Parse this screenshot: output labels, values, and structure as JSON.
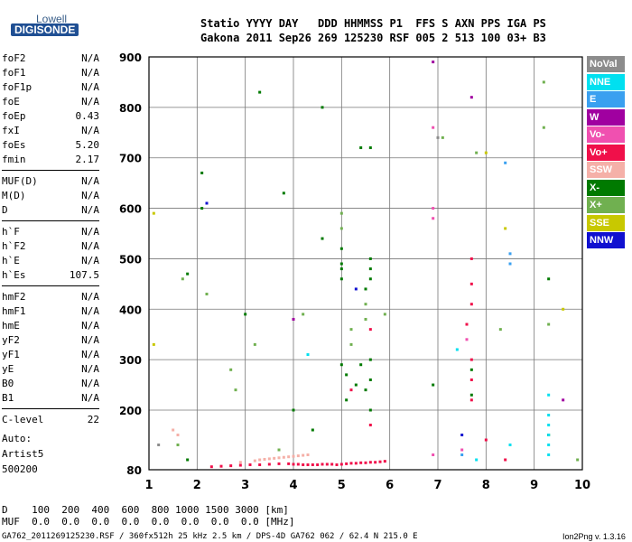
{
  "logo": {
    "top": "Lowell",
    "bottom": "DIGISONDE"
  },
  "header": {
    "line1": "Statio YYYY DAY   DDD HHMMSS P1  FFS S AXN PPS IGA PS",
    "line2": "Gakona 2011 Sep26 269 125230 RSF 005 2 513 100 03+ B3"
  },
  "params_groups": [
    [
      {
        "name": "foF2",
        "value": "N/A"
      },
      {
        "name": "foF1",
        "value": "N/A"
      },
      {
        "name": "foF1p",
        "value": "N/A"
      },
      {
        "name": "foE",
        "value": "N/A"
      },
      {
        "name": "foEp",
        "value": "0.43"
      },
      {
        "name": "fxI",
        "value": "N/A"
      },
      {
        "name": "foEs",
        "value": "5.20"
      },
      {
        "name": "fmin",
        "value": "2.17"
      }
    ],
    [
      {
        "name": "MUF(D)",
        "value": "N/A"
      },
      {
        "name": "M(D)",
        "value": "N/A"
      },
      {
        "name": "D",
        "value": "N/A"
      }
    ],
    [
      {
        "name": "h`F",
        "value": "N/A"
      },
      {
        "name": "h`F2",
        "value": "N/A"
      },
      {
        "name": "h`E",
        "value": "N/A"
      },
      {
        "name": "h`Es",
        "value": "107.5"
      }
    ],
    [
      {
        "name": "hmF2",
        "value": "N/A"
      },
      {
        "name": "hmF1",
        "value": "N/A"
      },
      {
        "name": "hmE",
        "value": "N/A"
      },
      {
        "name": "yF2",
        "value": "N/A"
      },
      {
        "name": "yF1",
        "value": "N/A"
      },
      {
        "name": "yE",
        "value": "N/A"
      },
      {
        "name": "B0",
        "value": "N/A"
      },
      {
        "name": "B1",
        "value": "N/A"
      }
    ],
    [
      {
        "name": "C-level",
        "value": "22"
      }
    ]
  ],
  "auto": {
    "line1": "Auto:",
    "line2": "Artist5",
    "line3": "500200"
  },
  "legend": [
    {
      "label": "NoVal",
      "color": "#8c8c8c"
    },
    {
      "label": "NNE",
      "color": "#00e0f0"
    },
    {
      "label": "E",
      "color": "#3aa0f0"
    },
    {
      "label": "W",
      "color": "#a000a0"
    },
    {
      "label": "Vo-",
      "color": "#f050b0"
    },
    {
      "label": "Vo+",
      "color": "#f0104a"
    },
    {
      "label": "SSW",
      "color": "#f5b0a8"
    },
    {
      "label": "X-",
      "color": "#007a00"
    },
    {
      "label": "X+",
      "color": "#70b050"
    },
    {
      "label": "SSE",
      "color": "#c8c800"
    },
    {
      "label": "NNW",
      "color": "#1010d0"
    }
  ],
  "footer": {
    "d_row": "D    100  200  400  600  800 1000 1500 3000 [km]",
    "muf_row": "MUF  0.0  0.0  0.0  0.0  0.0  0.0  0.0  0.0 [MHz]",
    "bottom_line": "GA762_2011269125230.RSF / 360fx512h 25 kHz 2.5 km / DPS-4D GA762 062 / 62.4 N 215.0 E",
    "version": "Ion2Png v. 1.3.16"
  },
  "chart_data": {
    "type": "scatter",
    "xlim": [
      1,
      10
    ],
    "ylim": [
      80,
      900
    ],
    "x_ticks": [
      1,
      2,
      3,
      4,
      5,
      6,
      7,
      8,
      9,
      10
    ],
    "y_ticks": [
      80,
      200,
      300,
      400,
      500,
      600,
      700,
      800,
      900
    ],
    "grid": true,
    "legend_position": "right",
    "series": [
      {
        "name": "Vo+",
        "color": "#f0104a",
        "points": [
          [
            2.3,
            86
          ],
          [
            2.5,
            87
          ],
          [
            2.7,
            88
          ],
          [
            2.9,
            89
          ],
          [
            3.1,
            90
          ],
          [
            3.3,
            90
          ],
          [
            3.5,
            91
          ],
          [
            3.7,
            92
          ],
          [
            3.9,
            92
          ],
          [
            4.0,
            91
          ],
          [
            4.1,
            91
          ],
          [
            4.2,
            90
          ],
          [
            4.3,
            90
          ],
          [
            4.4,
            90
          ],
          [
            4.5,
            90
          ],
          [
            4.6,
            91
          ],
          [
            4.7,
            91
          ],
          [
            4.8,
            91
          ],
          [
            4.9,
            90
          ],
          [
            5.0,
            91
          ],
          [
            5.1,
            92
          ],
          [
            5.2,
            93
          ],
          [
            5.3,
            93
          ],
          [
            5.4,
            94
          ],
          [
            5.5,
            94
          ],
          [
            5.6,
            95
          ],
          [
            5.7,
            95
          ],
          [
            5.8,
            96
          ],
          [
            5.9,
            97
          ],
          [
            7.7,
            500
          ],
          [
            7.7,
            450
          ],
          [
            7.7,
            410
          ],
          [
            7.7,
            300
          ],
          [
            7.7,
            260
          ],
          [
            7.7,
            220
          ],
          [
            7.6,
            370
          ],
          [
            8.0,
            140
          ],
          [
            8.4,
            100
          ],
          [
            5.6,
            170
          ],
          [
            5.6,
            360
          ],
          [
            5.2,
            240
          ]
        ]
      },
      {
        "name": "Vo-",
        "color": "#f050b0",
        "points": [
          [
            6.9,
            760
          ],
          [
            6.9,
            600
          ],
          [
            6.9,
            580
          ],
          [
            7.6,
            340
          ],
          [
            7.5,
            120
          ],
          [
            6.9,
            110
          ]
        ]
      },
      {
        "name": "SSW",
        "color": "#f5b0a8",
        "points": [
          [
            1.5,
            160
          ],
          [
            1.6,
            150
          ],
          [
            3.4,
            101
          ],
          [
            3.5,
            102
          ],
          [
            3.6,
            103
          ],
          [
            3.7,
            104
          ],
          [
            3.8,
            105
          ],
          [
            3.9,
            106
          ],
          [
            4.0,
            107
          ],
          [
            4.1,
            108
          ],
          [
            4.2,
            109
          ],
          [
            4.3,
            110
          ],
          [
            3.3,
            100
          ],
          [
            3.2,
            98
          ],
          [
            2.9,
            95
          ]
        ]
      },
      {
        "name": "X-",
        "color": "#007a00",
        "points": [
          [
            1.8,
            470
          ],
          [
            1.8,
            100
          ],
          [
            2.1,
            670
          ],
          [
            2.1,
            600
          ],
          [
            3.0,
            390
          ],
          [
            3.3,
            830
          ],
          [
            3.8,
            630
          ],
          [
            4.0,
            200
          ],
          [
            4.4,
            160
          ],
          [
            4.6,
            540
          ],
          [
            4.6,
            800
          ],
          [
            5.0,
            520
          ],
          [
            5.0,
            490
          ],
          [
            5.0,
            480
          ],
          [
            5.0,
            460
          ],
          [
            5.0,
            290
          ],
          [
            5.1,
            220
          ],
          [
            5.1,
            270
          ],
          [
            5.5,
            440
          ],
          [
            5.6,
            500
          ],
          [
            5.6,
            480
          ],
          [
            5.6,
            460
          ],
          [
            5.6,
            300
          ],
          [
            5.6,
            260
          ],
          [
            5.6,
            200
          ],
          [
            5.4,
            290
          ],
          [
            5.3,
            250
          ],
          [
            5.5,
            240
          ],
          [
            6.9,
            250
          ],
          [
            7.7,
            230
          ],
          [
            7.7,
            280
          ],
          [
            9.3,
            460
          ],
          [
            9.3,
            150
          ],
          [
            5.4,
            720
          ],
          [
            5.6,
            720
          ]
        ]
      },
      {
        "name": "X+",
        "color": "#70b050",
        "points": [
          [
            1.6,
            130
          ],
          [
            1.7,
            460
          ],
          [
            2.2,
            430
          ],
          [
            2.7,
            280
          ],
          [
            2.8,
            240
          ],
          [
            3.2,
            330
          ],
          [
            3.7,
            120
          ],
          [
            4.2,
            390
          ],
          [
            5.0,
            590
          ],
          [
            5.0,
            560
          ],
          [
            5.2,
            360
          ],
          [
            5.2,
            330
          ],
          [
            5.5,
            410
          ],
          [
            5.5,
            380
          ],
          [
            5.9,
            390
          ],
          [
            7.1,
            740
          ],
          [
            7.8,
            710
          ],
          [
            8.3,
            360
          ],
          [
            9.2,
            850
          ],
          [
            9.2,
            760
          ],
          [
            9.3,
            370
          ],
          [
            9.9,
            100
          ]
        ]
      },
      {
        "name": "NNE",
        "color": "#00e0f0",
        "points": [
          [
            9.3,
            230
          ],
          [
            9.3,
            190
          ],
          [
            9.3,
            170
          ],
          [
            9.3,
            150
          ],
          [
            9.3,
            130
          ],
          [
            9.3,
            110
          ],
          [
            8.5,
            130
          ],
          [
            7.4,
            320
          ],
          [
            7.8,
            100
          ],
          [
            4.3,
            310
          ]
        ]
      },
      {
        "name": "E",
        "color": "#3aa0f0",
        "points": [
          [
            8.5,
            510
          ],
          [
            8.5,
            490
          ],
          [
            8.4,
            690
          ],
          [
            7.5,
            110
          ]
        ]
      },
      {
        "name": "W",
        "color": "#a000a0",
        "points": [
          [
            6.9,
            890
          ],
          [
            7.7,
            820
          ],
          [
            9.6,
            220
          ],
          [
            4.0,
            380
          ]
        ]
      },
      {
        "name": "NNW",
        "color": "#1010d0",
        "points": [
          [
            2.2,
            610
          ],
          [
            5.3,
            440
          ],
          [
            7.5,
            150
          ]
        ]
      },
      {
        "name": "SSE",
        "color": "#c8c800",
        "points": [
          [
            8.0,
            710
          ],
          [
            9.6,
            400
          ],
          [
            1.1,
            590
          ],
          [
            1.1,
            330
          ],
          [
            8.4,
            560
          ]
        ]
      },
      {
        "name": "NoVal",
        "color": "#8c8c8c",
        "points": [
          [
            1.2,
            130
          ],
          [
            7.0,
            740
          ]
        ]
      }
    ]
  }
}
